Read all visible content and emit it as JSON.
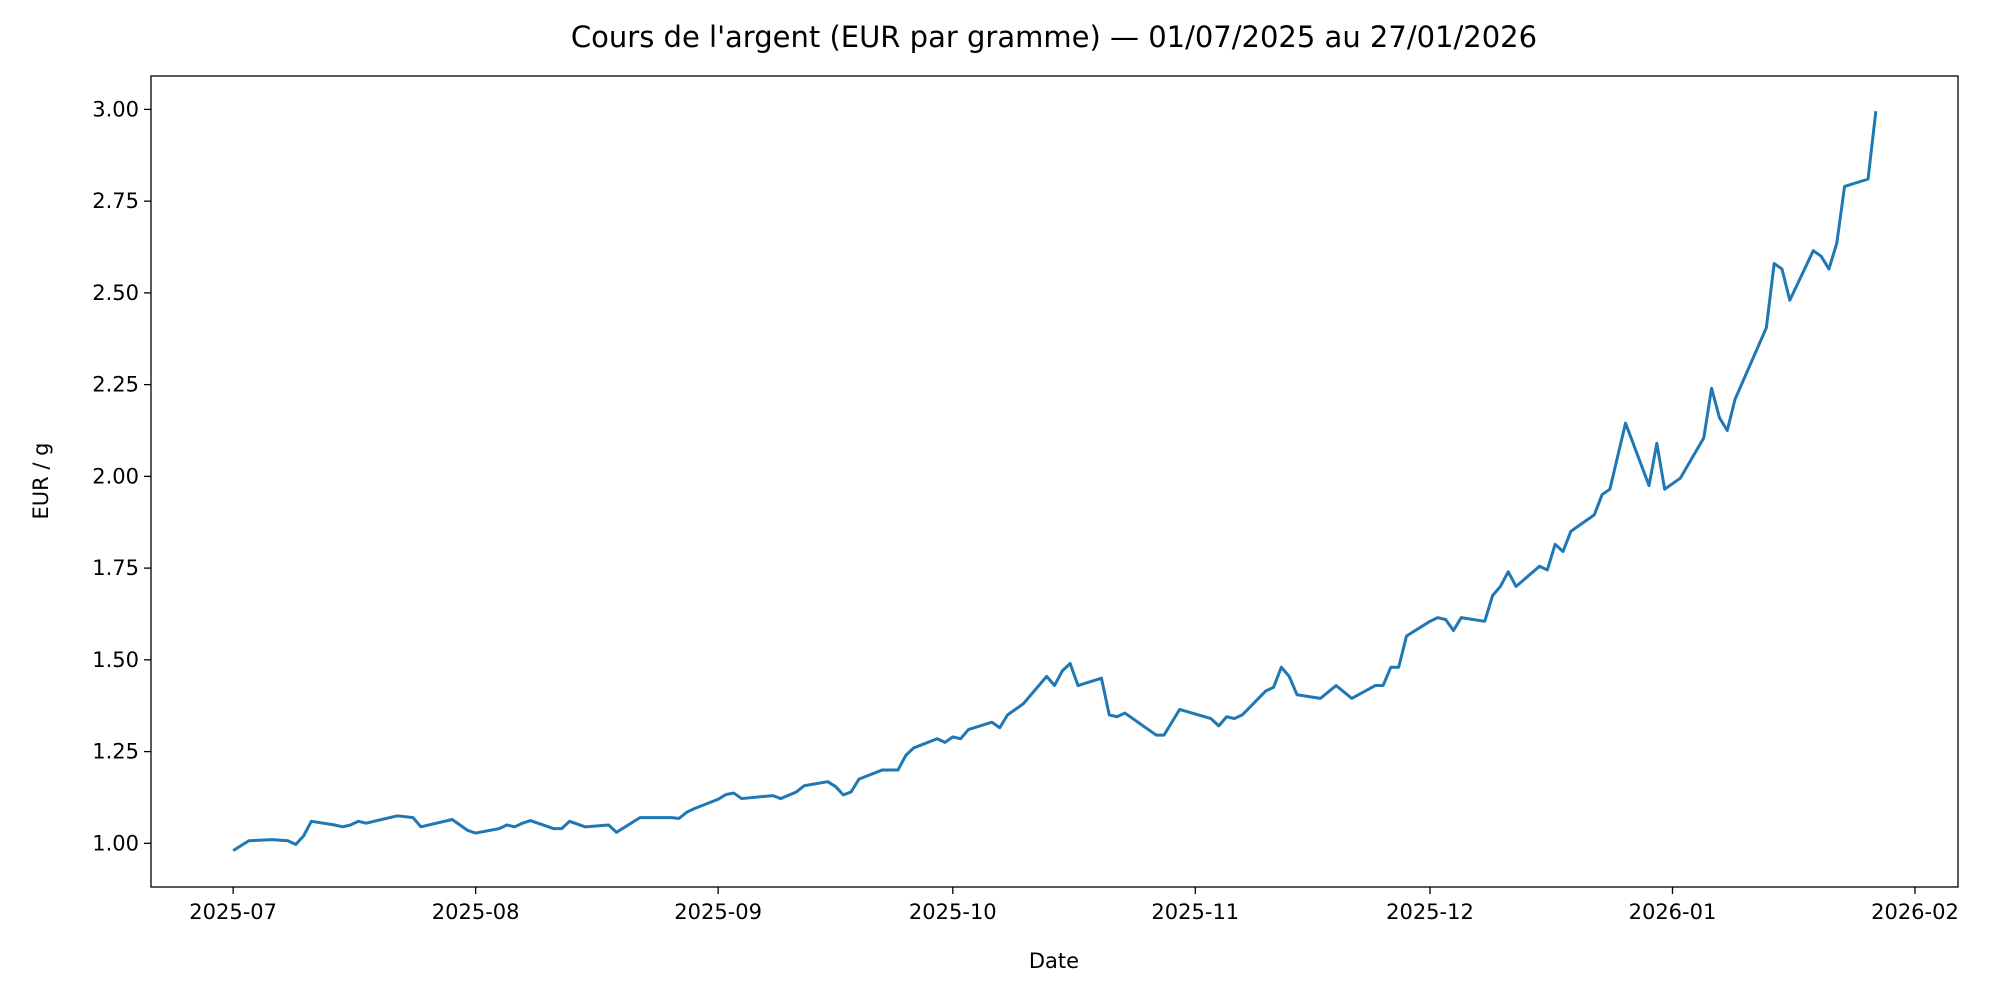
{
  "chart_data": {
    "type": "line",
    "title": "Cours de l'argent (EUR par gramme) — 01/07/2025 au 27/01/2026",
    "xlabel": "Date",
    "ylabel": "EUR / g",
    "xlim": [
      -10.5,
      220.5
    ],
    "ylim": [
      0.881,
      3.091
    ],
    "xticks": [
      {
        "value": 0,
        "label": "2025-07"
      },
      {
        "value": 31,
        "label": "2025-08"
      },
      {
        "value": 62,
        "label": "2025-09"
      },
      {
        "value": 92,
        "label": "2025-10"
      },
      {
        "value": 123,
        "label": "2025-11"
      },
      {
        "value": 153,
        "label": "2025-12"
      },
      {
        "value": 184,
        "label": "2026-01"
      },
      {
        "value": 215,
        "label": "2026-02"
      }
    ],
    "yticks": [
      {
        "value": 1,
        "label": "1.00"
      },
      {
        "value": 1.25,
        "label": "1.25"
      },
      {
        "value": 1.5,
        "label": "1.50"
      },
      {
        "value": 1.75,
        "label": "1.75"
      },
      {
        "value": 2,
        "label": "2.00"
      },
      {
        "value": 2.25,
        "label": "2.25"
      },
      {
        "value": 2.5,
        "label": "2.50"
      },
      {
        "value": 2.75,
        "label": "2.75"
      },
      {
        "value": 3,
        "label": "3.00"
      }
    ],
    "grid": false,
    "color": "#1f77b4",
    "x": [
      0,
      2,
      5,
      7,
      8,
      9,
      10,
      13,
      14,
      15,
      16,
      17,
      21,
      23,
      24,
      28,
      29,
      30,
      31,
      34,
      35,
      36,
      37,
      38,
      41,
      42,
      43,
      45,
      48,
      49,
      52,
      56,
      57,
      58,
      59,
      62,
      63,
      64,
      65,
      69,
      70,
      72,
      73,
      76,
      77,
      78,
      79,
      80,
      83,
      84,
      85,
      86,
      87,
      90,
      91,
      92,
      93,
      94,
      97,
      98,
      99,
      101,
      104,
      105,
      106,
      107,
      108,
      111,
      112,
      113,
      114,
      115,
      118,
      119,
      120,
      121,
      125,
      126,
      127,
      128,
      129,
      132,
      133,
      134,
      135,
      136,
      139,
      141,
      143,
      146,
      147,
      148,
      149,
      150,
      153,
      154,
      155,
      156,
      157,
      160,
      161,
      162,
      163,
      164,
      167,
      168,
      169,
      170,
      171,
      174,
      175,
      176,
      178,
      181,
      182,
      183,
      185,
      188,
      189,
      190,
      191,
      192,
      196,
      197,
      198,
      199,
      202,
      203,
      204,
      205,
      206,
      209,
      210
    ],
    "values": [
      0.98,
      1.007,
      1.01,
      1.007,
      0.997,
      1.02,
      1.06,
      1.05,
      1.045,
      1.05,
      1.06,
      1.055,
      1.075,
      1.07,
      1.045,
      1.065,
      1.05,
      1.035,
      1.028,
      1.04,
      1.05,
      1.045,
      1.055,
      1.062,
      1.04,
      1.04,
      1.06,
      1.045,
      1.05,
      1.03,
      1.07,
      1.07,
      1.068,
      1.085,
      1.095,
      1.12,
      1.133,
      1.137,
      1.122,
      1.13,
      1.122,
      1.14,
      1.157,
      1.168,
      1.155,
      1.132,
      1.14,
      1.175,
      1.2,
      1.2,
      1.2,
      1.24,
      1.26,
      1.285,
      1.275,
      1.29,
      1.285,
      1.31,
      1.33,
      1.315,
      1.35,
      1.38,
      1.455,
      1.43,
      1.47,
      1.49,
      1.43,
      1.45,
      1.35,
      1.345,
      1.355,
      1.34,
      1.295,
      1.295,
      1.33,
      1.365,
      1.34,
      1.32,
      1.345,
      1.34,
      1.35,
      1.415,
      1.425,
      1.48,
      1.455,
      1.405,
      1.395,
      1.43,
      1.395,
      1.43,
      1.43,
      1.48,
      1.48,
      1.565,
      1.605,
      1.615,
      1.61,
      1.58,
      1.615,
      1.605,
      1.675,
      1.7,
      1.74,
      1.7,
      1.755,
      1.745,
      1.815,
      1.795,
      1.85,
      1.895,
      1.95,
      1.965,
      2.145,
      1.975,
      2.09,
      1.965,
      1.995,
      2.105,
      2.24,
      2.16,
      2.125,
      2.21,
      2.405,
      2.58,
      2.565,
      2.48,
      2.615,
      2.6,
      2.565,
      2.635,
      2.79,
      2.81,
      2.995
    ]
  }
}
